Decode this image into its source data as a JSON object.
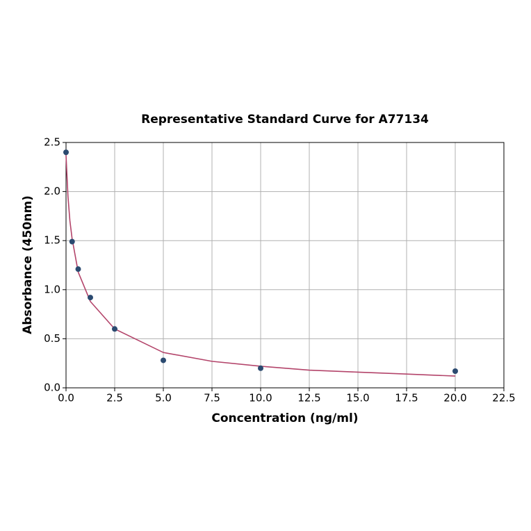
{
  "chart_data": {
    "type": "scatter",
    "title": "Representative Standard Curve for A77134",
    "x_label": "Concentration (ng/ml)",
    "y_label": "Absorbance (450nm)",
    "xlim": [
      0,
      22.5
    ],
    "ylim": [
      0,
      2.5
    ],
    "xticks": [
      {
        "value": 0,
        "label": "0.0"
      },
      2.5,
      {
        "value": 5,
        "label": "5.0"
      },
      7.5,
      {
        "value": 10,
        "label": "10.0"
      },
      12.5,
      {
        "value": 15,
        "label": "15.0"
      },
      17.5,
      {
        "value": 20,
        "label": "20.0"
      },
      22.5
    ],
    "yticks": [
      {
        "value": 0,
        "label": "0.0"
      },
      0.5,
      {
        "value": 1,
        "label": "1.0"
      },
      1.5,
      {
        "value": 2,
        "label": "2.0"
      },
      2.5
    ],
    "grid": true,
    "series": [
      {
        "type": "scatter",
        "color": "#2b4a70",
        "x": [
          0,
          0.3125,
          0.625,
          1.25,
          2.5,
          5,
          10,
          20
        ],
        "values": [
          2.4,
          1.49,
          1.21,
          0.92,
          0.6,
          0.28,
          0.2,
          0.17
        ]
      },
      {
        "type": "line",
        "color": "#b3446a",
        "x": [
          0,
          0.1,
          0.2,
          0.3125,
          0.625,
          1.25,
          2.5,
          5,
          7.5,
          10,
          12.5,
          15,
          17.5,
          20
        ],
        "values": [
          2.37,
          1.95,
          1.7,
          1.52,
          1.18,
          0.88,
          0.6,
          0.36,
          0.27,
          0.22,
          0.18,
          0.16,
          0.14,
          0.12
        ]
      }
    ]
  }
}
